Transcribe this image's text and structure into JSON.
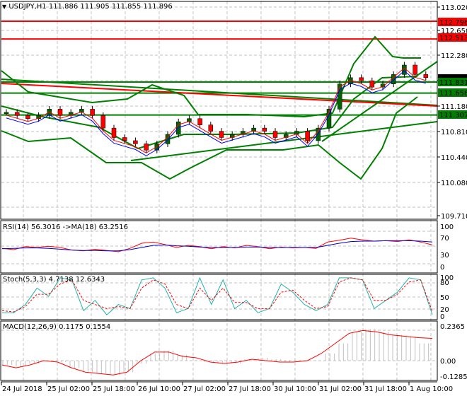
{
  "header": {
    "symbol": "USDJPY,H1",
    "ohlc": "111.886 111.905 111.855 111.896",
    "menu_icon": "triangle-down-icon"
  },
  "colors": {
    "background": "#ffffff",
    "grid": "#c0c0c0",
    "bull_candle": "#006400",
    "bear_candle": "#ff0000",
    "support_line": "#008000",
    "resistance_line": "#ff0000",
    "ma_fast": "#ff0000",
    "ma_slow": "#0000ff",
    "rsi_line": "#ff0000",
    "rsi_ma": "#0000cc",
    "stoch_main": "#20b2aa",
    "stoch_signal": "#ff0000",
    "macd_hist": "#c0c0c0",
    "macd_signal": "#ff0000"
  },
  "price_axis": {
    "ticks": [
      "113.020",
      "112.650",
      "112.280",
      "111.550",
      "111.180",
      "110.810",
      "110.440",
      "110.080",
      "109.710"
    ],
    "labels": [
      {
        "value": "112.796",
        "color": "#ff0000"
      },
      {
        "value": "112.513",
        "color": "#ff0000"
      },
      {
        "value": "111.896",
        "color": "#000000"
      },
      {
        "value": "111.831",
        "color": "#008000"
      },
      {
        "value": "111.656",
        "color": "#008000"
      },
      {
        "value": "111.307",
        "color": "#008000"
      }
    ]
  },
  "time_axis": {
    "labels": [
      "24 Jul 2018",
      "25 Jul 02:00",
      "25 Jul 18:00",
      "26 Jul 10:00",
      "27 Jul 02:00",
      "27 Jul 18:00",
      "30 Jul 10:00",
      "31 Jul 02:00",
      "31 Jul 18:00",
      "1 Aug 10:00"
    ]
  },
  "indicators": {
    "rsi": {
      "label": "RSI(14) 56.3016  ->MA(18) 63.2516",
      "ticks": [
        "100",
        "70",
        "30",
        "0"
      ]
    },
    "stoch": {
      "label": "Stoch(5,3,3) 4.7138 12.6343",
      "ticks": [
        "100",
        "80",
        "50",
        "20",
        "0"
      ]
    },
    "macd": {
      "label": "MACD(12,26,9) 0.1175 0.1554",
      "ticks": [
        "0.2365",
        "0.00",
        "-0.1285"
      ]
    }
  },
  "chart_data": [
    {
      "type": "candlestick",
      "title": "USDJPY,H1",
      "ohlc_last": {
        "open": 111.886,
        "high": 111.905,
        "low": 111.855,
        "close": 111.896
      },
      "ylim": [
        109.71,
        113.02
      ],
      "horizontal_levels": [
        {
          "value": 112.796,
          "color": "red"
        },
        {
          "value": 112.513,
          "color": "red"
        },
        {
          "value": 111.831,
          "color": "green"
        },
        {
          "value": 111.656,
          "color": "green"
        },
        {
          "value": 111.307,
          "color": "green"
        }
      ],
      "close_approx": [
        111.35,
        111.3,
        111.25,
        111.3,
        111.4,
        111.3,
        111.35,
        111.4,
        111.3,
        111.1,
        110.95,
        110.9,
        110.85,
        110.75,
        110.85,
        111.0,
        111.2,
        111.25,
        111.15,
        111.05,
        110.95,
        111.0,
        111.05,
        111.1,
        111.05,
        110.95,
        111.0,
        111.05,
        110.9,
        111.1,
        111.4,
        111.8,
        111.9,
        111.85,
        111.75,
        111.8,
        111.95,
        112.1,
        111.95,
        111.9
      ],
      "x_labels": [
        "24 Jul 2018",
        "25 Jul 02:00",
        "25 Jul 18:00",
        "26 Jul 10:00",
        "27 Jul 02:00",
        "27 Jul 18:00",
        "30 Jul 10:00",
        "31 Jul 02:00",
        "31 Jul 18:00",
        "1 Aug 10:00"
      ]
    },
    {
      "type": "line",
      "title": "RSI(14) 56.3016 ->MA(18) 63.2516",
      "ylim": [
        0,
        100
      ],
      "series": [
        {
          "name": "RSI(14)",
          "values": [
            48,
            45,
            52,
            50,
            53,
            50,
            44,
            42,
            46,
            43,
            40,
            48,
            60,
            63,
            57,
            50,
            55,
            52,
            47,
            52,
            49,
            55,
            52,
            47,
            51,
            49,
            50,
            48,
            63,
            67,
            72,
            68,
            65,
            66,
            64,
            68,
            63,
            56
          ]
        },
        {
          "name": "MA(18)",
          "values": [
            47,
            48,
            49,
            49,
            48,
            46,
            44,
            43,
            43,
            42,
            42,
            45,
            50,
            55,
            56,
            54,
            53,
            51,
            50,
            50,
            50,
            51,
            51,
            50,
            50,
            50,
            50,
            50,
            55,
            60,
            64,
            65,
            65,
            66,
            66,
            66,
            65,
            63
          ]
        }
      ]
    },
    {
      "type": "line",
      "title": "Stoch(5,3,3) 4.7138 12.6343",
      "ylim": [
        0,
        100
      ],
      "series": [
        {
          "name": "%K",
          "values": [
            10,
            10,
            30,
            70,
            50,
            95,
            90,
            15,
            40,
            5,
            30,
            20,
            90,
            95,
            70,
            10,
            20,
            95,
            30,
            90,
            20,
            40,
            10,
            20,
            80,
            60,
            30,
            15,
            30,
            95,
            95,
            90,
            20,
            40,
            60,
            95,
            90,
            5
          ]
        },
        {
          "name": "%D",
          "values": [
            15,
            12,
            25,
            55,
            55,
            80,
            90,
            40,
            30,
            20,
            25,
            20,
            70,
            90,
            80,
            30,
            20,
            70,
            40,
            70,
            35,
            35,
            20,
            20,
            60,
            65,
            40,
            20,
            25,
            85,
            95,
            90,
            40,
            40,
            55,
            85,
            90,
            13
          ]
        }
      ]
    },
    {
      "type": "bar+line",
      "title": "MACD(12,26,9) 0.1175 0.1554",
      "ylim": [
        -0.1285,
        0.2365
      ],
      "series": [
        {
          "name": "MACD histogram",
          "values": [
            -0.03,
            -0.04,
            -0.02,
            0.0,
            -0.01,
            -0.05,
            -0.08,
            -0.09,
            -0.1,
            -0.08,
            -0.02,
            0.05,
            0.07,
            0.04,
            0.0,
            -0.01,
            -0.02,
            -0.02,
            0.01,
            0.02,
            0.01,
            -0.01,
            0.0,
            0.0,
            0.05,
            0.12,
            0.2,
            0.22,
            0.2,
            0.18,
            0.17,
            0.12
          ]
        },
        {
          "name": "Signal",
          "values": [
            -0.03,
            -0.05,
            -0.03,
            0.0,
            -0.01,
            -0.05,
            -0.08,
            -0.09,
            -0.1,
            -0.08,
            0.0,
            0.06,
            0.06,
            0.03,
            0.02,
            -0.01,
            -0.02,
            -0.01,
            0.01,
            0.0,
            -0.01,
            -0.01,
            0.0,
            0.05,
            0.12,
            0.19,
            0.21,
            0.2,
            0.18,
            0.17,
            0.16,
            0.155
          ]
        }
      ]
    }
  ]
}
